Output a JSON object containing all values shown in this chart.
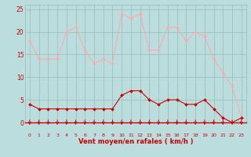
{
  "hours": [
    0,
    1,
    2,
    3,
    4,
    5,
    6,
    7,
    8,
    9,
    10,
    11,
    12,
    13,
    14,
    15,
    16,
    17,
    18,
    19,
    20,
    21,
    22,
    23
  ],
  "rafales": [
    18,
    14,
    14,
    14,
    20,
    21,
    16,
    13,
    14,
    13,
    24,
    23,
    24,
    16,
    16,
    21,
    21,
    18,
    20,
    19,
    14,
    11,
    8,
    1
  ],
  "moyen": [
    4,
    3,
    3,
    3,
    3,
    3,
    3,
    3,
    3,
    3,
    6,
    7,
    7,
    5,
    4,
    5,
    5,
    4,
    4,
    5,
    3,
    1,
    0,
    1
  ],
  "color_rafales": "#ffaaaa",
  "color_moyen": "#cc0000",
  "bg_color": "#bbdddd",
  "grid_color": "#99bbbb",
  "xlabel": "Vent moyen/en rafales ( km/h )",
  "xlabel_color": "#cc0000",
  "tick_color": "#cc0000",
  "arrow_color": "#cc0000",
  "ylim": [
    0,
    26
  ],
  "yticks": [
    0,
    5,
    10,
    15,
    20,
    25
  ]
}
